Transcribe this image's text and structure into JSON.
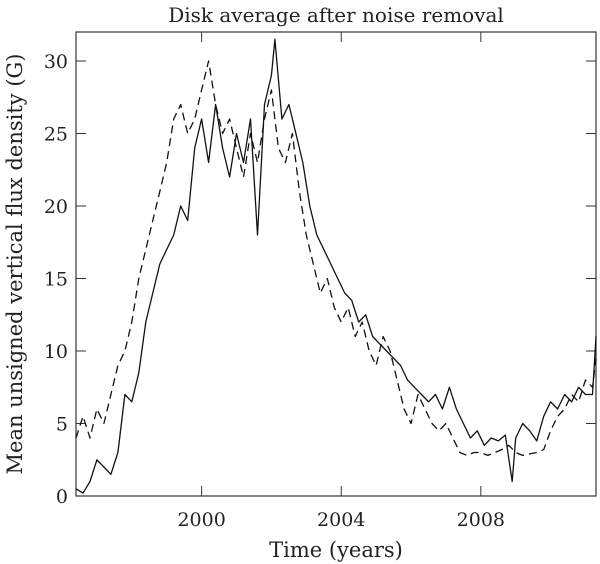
{
  "chart_data": {
    "type": "line",
    "title": "Disk average after noise removal",
    "xlabel": "Time (years)",
    "ylabel": "Mean unsigned vertical flux density (G)",
    "xlim": [
      1996.4,
      2011.3
    ],
    "ylim": [
      0,
      32
    ],
    "xticks": [
      2000,
      2004,
      2008
    ],
    "yticks": [
      0,
      5,
      10,
      15,
      20,
      25,
      30
    ],
    "grid": false,
    "legend": "none",
    "series": [
      {
        "style": "solid",
        "x": [
          1996.4,
          1996.6,
          1996.8,
          1997.0,
          1997.2,
          1997.4,
          1997.6,
          1997.8,
          1998.0,
          1998.2,
          1998.4,
          1998.6,
          1998.8,
          1999.0,
          1999.2,
          1999.4,
          1999.6,
          1999.8,
          2000.0,
          2000.2,
          2000.4,
          2000.6,
          2000.8,
          2001.0,
          2001.2,
          2001.4,
          2001.6,
          2001.8,
          2002.0,
          2002.1,
          2002.3,
          2002.5,
          2002.7,
          2002.9,
          2003.1,
          2003.3,
          2003.5,
          2003.7,
          2003.9,
          2004.1,
          2004.3,
          2004.5,
          2004.7,
          2004.9,
          2005.1,
          2005.3,
          2005.5,
          2005.7,
          2005.9,
          2006.1,
          2006.3,
          2006.5,
          2006.7,
          2006.9,
          2007.1,
          2007.3,
          2007.5,
          2007.7,
          2007.9,
          2008.1,
          2008.3,
          2008.5,
          2008.7,
          2008.9,
          2009.0,
          2009.2,
          2009.4,
          2009.6,
          2009.8,
          2010.0,
          2010.2,
          2010.4,
          2010.6,
          2010.8,
          2011.0,
          2011.2,
          2011.3
        ],
        "y": [
          0.5,
          0.2,
          1.0,
          2.5,
          2.0,
          1.5,
          3.0,
          7.0,
          6.5,
          8.5,
          12.0,
          14.0,
          16.0,
          17.0,
          18.0,
          20.0,
          19.0,
          24.0,
          26.0,
          23.0,
          27.0,
          24.0,
          22.0,
          25.0,
          23.0,
          26.0,
          18.0,
          27.0,
          29.0,
          31.5,
          26.0,
          27.0,
          25.0,
          23.0,
          20.0,
          18.0,
          17.0,
          16.0,
          15.0,
          14.0,
          13.5,
          12.0,
          12.5,
          11.0,
          10.5,
          10.0,
          9.5,
          9.0,
          8.0,
          7.5,
          7.0,
          6.5,
          7.0,
          6.0,
          7.5,
          6.0,
          5.0,
          4.0,
          4.5,
          3.5,
          4.0,
          3.8,
          4.2,
          1.0,
          4.0,
          5.0,
          4.5,
          3.8,
          5.5,
          6.5,
          6.0,
          7.0,
          6.5,
          7.5,
          7.0,
          7.0,
          11.0
        ]
      },
      {
        "style": "dashed",
        "x": [
          1996.4,
          1996.6,
          1996.8,
          1997.0,
          1997.2,
          1997.4,
          1997.6,
          1997.8,
          1998.0,
          1998.2,
          1998.4,
          1998.6,
          1998.8,
          1999.0,
          1999.2,
          1999.4,
          1999.6,
          1999.8,
          2000.0,
          2000.2,
          2000.4,
          2000.6,
          2000.8,
          2001.0,
          2001.2,
          2001.4,
          2001.6,
          2001.8,
          2002.0,
          2002.2,
          2002.4,
          2002.6,
          2002.8,
          2003.0,
          2003.2,
          2003.4,
          2003.6,
          2003.8,
          2004.0,
          2004.2,
          2004.4,
          2004.6,
          2004.8,
          2005.0,
          2005.2,
          2005.4,
          2005.6,
          2005.8,
          2006.0,
          2006.2,
          2006.4,
          2006.6,
          2006.8,
          2007.0,
          2007.2,
          2007.4,
          2007.6,
          2007.8,
          2008.0,
          2008.2,
          2008.4,
          2008.6,
          2008.8,
          2009.0,
          2009.2,
          2009.4,
          2009.6,
          2009.8,
          2010.0,
          2010.2,
          2010.4,
          2010.6,
          2010.8,
          2011.0,
          2011.2,
          2011.3
        ],
        "y": [
          4.0,
          5.5,
          4.0,
          6.0,
          5.0,
          7.0,
          9.0,
          10.0,
          12.0,
          15.0,
          17.0,
          19.0,
          21.0,
          23.0,
          26.0,
          27.0,
          25.0,
          26.0,
          28.0,
          30.0,
          27.0,
          25.0,
          26.0,
          24.0,
          22.0,
          25.0,
          23.0,
          26.0,
          28.0,
          24.0,
          23.0,
          25.0,
          21.0,
          18.0,
          16.0,
          14.0,
          15.0,
          13.0,
          12.0,
          13.0,
          11.0,
          12.0,
          10.0,
          9.0,
          11.0,
          10.0,
          8.0,
          6.0,
          5.0,
          7.0,
          6.0,
          5.0,
          4.5,
          5.0,
          4.0,
          3.0,
          2.8,
          3.0,
          3.0,
          2.8,
          3.0,
          3.2,
          3.5,
          3.0,
          2.8,
          2.9,
          3.0,
          3.2,
          4.5,
          5.5,
          6.0,
          7.0,
          6.5,
          8.0,
          7.5,
          9.5
        ]
      }
    ]
  }
}
